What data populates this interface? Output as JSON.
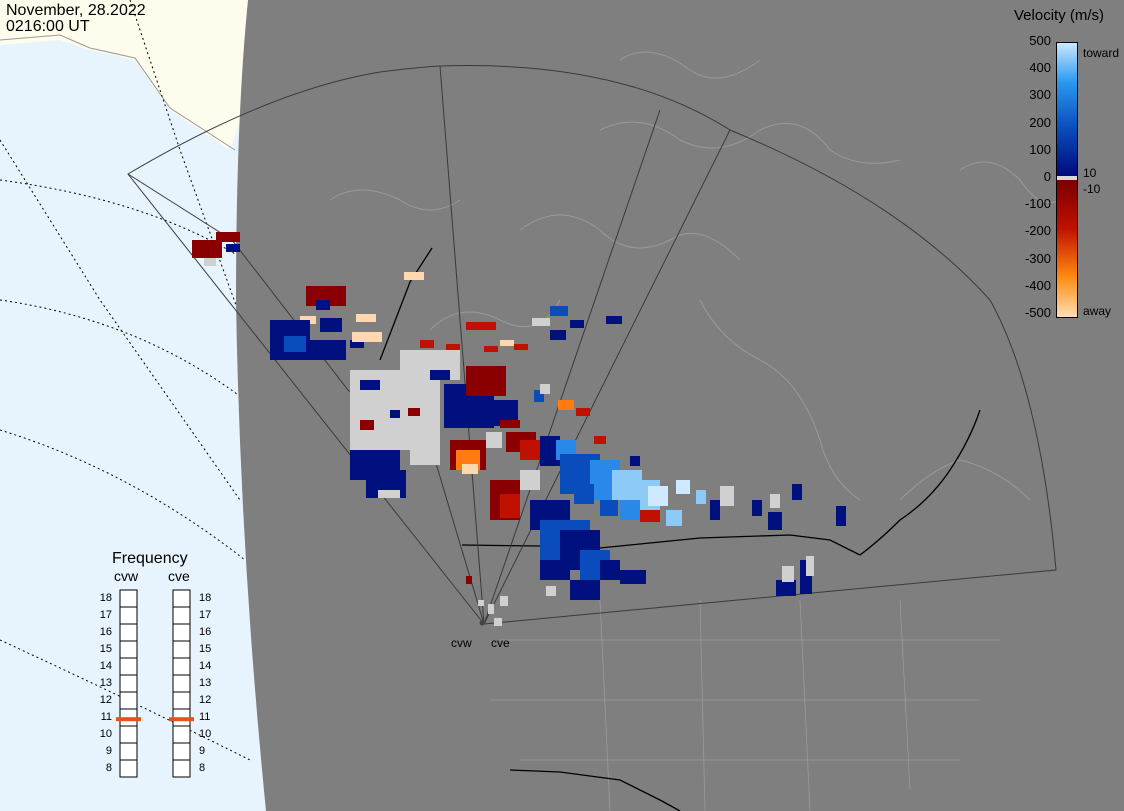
{
  "header": {
    "date": "November, 28.2022",
    "time": "0216:00 UT"
  },
  "colorbar": {
    "title": "Velocity (m/s)",
    "ticks": [
      "500",
      "400",
      "300",
      "200",
      "100",
      "0",
      "-100",
      "-200",
      "-300",
      "-400",
      "-500"
    ],
    "top_label": "toward",
    "bottom_label": "away",
    "pos_thresh": "10",
    "neg_thresh": "-10"
  },
  "radars": [
    {
      "name": "cvw"
    },
    {
      "name": "cve"
    }
  ],
  "frequency": {
    "title": "Frequency",
    "columns": [
      "cvw",
      "cve"
    ],
    "levels": [
      "18",
      "17",
      "16",
      "15",
      "14",
      "13",
      "12",
      "11",
      "10",
      "9",
      "8"
    ],
    "current": {
      "cvw": 10.9,
      "cve": 10.9
    },
    "marker_color": "#e8501e"
  },
  "colors": {
    "ocean": "#e8f4fd",
    "land_outside": "#fefcec",
    "inside": "#7f7f7f",
    "gray_scatter": "#d0d0d0",
    "border": "#000000",
    "coast": "#a0a0a0"
  }
}
